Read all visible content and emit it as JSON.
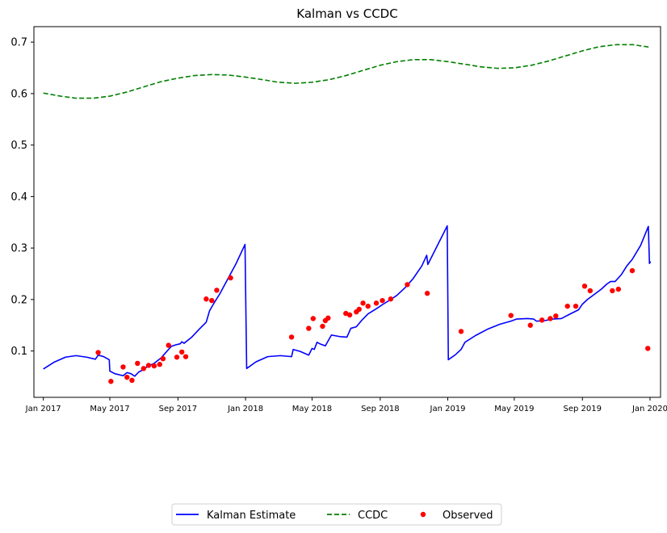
{
  "chart_data": {
    "type": "line",
    "title": "Kalman vs CCDC",
    "xlabel": "",
    "ylabel": "",
    "xlim": [
      "2016-12-15",
      "2020-01-20"
    ],
    "ylim": [
      0.01,
      0.73
    ],
    "x_ticks": [
      "2017-01-01",
      "2017-05-01",
      "2017-09-01",
      "2018-01-01",
      "2018-05-01",
      "2018-09-01",
      "2019-01-01",
      "2019-05-01",
      "2019-09-01",
      "2020-01-01"
    ],
    "x_tick_labels": [
      "Jan 2017",
      "May 2017",
      "Sep 2017",
      "Jan 2018",
      "May 2018",
      "Sep 2018",
      "Jan 2019",
      "May 2019",
      "Sep 2019",
      "Jan 2020"
    ],
    "y_ticks": [
      0.1,
      0.2,
      0.3,
      0.4,
      0.5,
      0.6,
      0.7
    ],
    "y_tick_labels": [
      "0.1",
      "0.2",
      "0.3",
      "0.4",
      "0.5",
      "0.6",
      "0.7"
    ],
    "grid": false,
    "legend_position": "bottom-center",
    "series": [
      {
        "name": "Kalman Estimate",
        "style": "solid",
        "color": "#0000ff",
        "points": [
          [
            "2017-01-01",
            0.065
          ],
          [
            "2017-01-20",
            0.078
          ],
          [
            "2017-02-10",
            0.088
          ],
          [
            "2017-03-01",
            0.091
          ],
          [
            "2017-03-20",
            0.088
          ],
          [
            "2017-04-05",
            0.084
          ],
          [
            "2017-04-10",
            0.092
          ],
          [
            "2017-04-20",
            0.089
          ],
          [
            "2017-04-30",
            0.083
          ],
          [
            "2017-05-01",
            0.061
          ],
          [
            "2017-05-10",
            0.056
          ],
          [
            "2017-05-25",
            0.052
          ],
          [
            "2017-06-01",
            0.058
          ],
          [
            "2017-06-08",
            0.056
          ],
          [
            "2017-06-15",
            0.051
          ],
          [
            "2017-06-22",
            0.059
          ],
          [
            "2017-07-01",
            0.064
          ],
          [
            "2017-07-08",
            0.07
          ],
          [
            "2017-07-20",
            0.076
          ],
          [
            "2017-08-01",
            0.086
          ],
          [
            "2017-08-10",
            0.097
          ],
          [
            "2017-08-20",
            0.109
          ],
          [
            "2017-08-28",
            0.112
          ],
          [
            "2017-09-05",
            0.114
          ],
          [
            "2017-09-08",
            0.118
          ],
          [
            "2017-09-12",
            0.115
          ],
          [
            "2017-09-25",
            0.126
          ],
          [
            "2017-10-10",
            0.143
          ],
          [
            "2017-10-22",
            0.156
          ],
          [
            "2017-10-28",
            0.178
          ],
          [
            "2017-11-05",
            0.193
          ],
          [
            "2017-11-15",
            0.21
          ],
          [
            "2017-11-25",
            0.23
          ],
          [
            "2017-12-05",
            0.25
          ],
          [
            "2017-12-15",
            0.27
          ],
          [
            "2017-12-31",
            0.307
          ],
          [
            "2018-01-03",
            0.066
          ],
          [
            "2018-01-20",
            0.079
          ],
          [
            "2018-02-10",
            0.089
          ],
          [
            "2018-03-05",
            0.091
          ],
          [
            "2018-03-25",
            0.089
          ],
          [
            "2018-03-28",
            0.103
          ],
          [
            "2018-04-10",
            0.099
          ],
          [
            "2018-04-25",
            0.092
          ],
          [
            "2018-05-01",
            0.105
          ],
          [
            "2018-05-05",
            0.103
          ],
          [
            "2018-05-10",
            0.117
          ],
          [
            "2018-05-15",
            0.114
          ],
          [
            "2018-05-25",
            0.11
          ],
          [
            "2018-06-05",
            0.131
          ],
          [
            "2018-06-20",
            0.128
          ],
          [
            "2018-07-03",
            0.127
          ],
          [
            "2018-07-10",
            0.144
          ],
          [
            "2018-07-20",
            0.147
          ],
          [
            "2018-07-30",
            0.16
          ],
          [
            "2018-08-10",
            0.172
          ],
          [
            "2018-08-25",
            0.182
          ],
          [
            "2018-09-05",
            0.19
          ],
          [
            "2018-09-20",
            0.2
          ],
          [
            "2018-10-01",
            0.208
          ],
          [
            "2018-10-15",
            0.222
          ],
          [
            "2018-10-30",
            0.24
          ],
          [
            "2018-11-15",
            0.265
          ],
          [
            "2018-11-24",
            0.286
          ],
          [
            "2018-11-26",
            0.268
          ],
          [
            "2018-12-31",
            0.343
          ],
          [
            "2019-01-02",
            0.083
          ],
          [
            "2019-01-15",
            0.093
          ],
          [
            "2019-01-25",
            0.103
          ],
          [
            "2019-02-01",
            0.117
          ],
          [
            "2019-02-20",
            0.13
          ],
          [
            "2019-03-15",
            0.143
          ],
          [
            "2019-04-05",
            0.152
          ],
          [
            "2019-04-25",
            0.158
          ],
          [
            "2019-05-05",
            0.162
          ],
          [
            "2019-05-25",
            0.163
          ],
          [
            "2019-06-05",
            0.162
          ],
          [
            "2019-06-10",
            0.158
          ],
          [
            "2019-06-25",
            0.159
          ],
          [
            "2019-07-10",
            0.162
          ],
          [
            "2019-07-25",
            0.163
          ],
          [
            "2019-08-10",
            0.172
          ],
          [
            "2019-08-25",
            0.18
          ],
          [
            "2019-09-01",
            0.191
          ],
          [
            "2019-09-10",
            0.2
          ],
          [
            "2019-09-25",
            0.212
          ],
          [
            "2019-10-05",
            0.22
          ],
          [
            "2019-10-15",
            0.23
          ],
          [
            "2019-10-22",
            0.235
          ],
          [
            "2019-10-30",
            0.235
          ],
          [
            "2019-11-10",
            0.248
          ],
          [
            "2019-11-20",
            0.265
          ],
          [
            "2019-11-30",
            0.278
          ],
          [
            "2019-12-15",
            0.305
          ],
          [
            "2019-12-29",
            0.342
          ],
          [
            "2019-12-31",
            0.27
          ],
          [
            "2020-01-02",
            0.274
          ]
        ]
      },
      {
        "name": "CCDC",
        "style": "dashed",
        "color": "#008000",
        "points": [
          [
            "2017-01-01",
            0.601
          ],
          [
            "2017-02-01",
            0.595
          ],
          [
            "2017-03-01",
            0.591
          ],
          [
            "2017-04-01",
            0.591
          ],
          [
            "2017-05-01",
            0.595
          ],
          [
            "2017-06-01",
            0.603
          ],
          [
            "2017-07-01",
            0.613
          ],
          [
            "2017-08-01",
            0.623
          ],
          [
            "2017-09-01",
            0.63
          ],
          [
            "2017-10-01",
            0.635
          ],
          [
            "2017-11-01",
            0.637
          ],
          [
            "2017-12-01",
            0.636
          ],
          [
            "2018-01-01",
            0.632
          ],
          [
            "2018-02-01",
            0.627
          ],
          [
            "2018-03-01",
            0.622
          ],
          [
            "2018-04-01",
            0.62
          ],
          [
            "2018-05-01",
            0.622
          ],
          [
            "2018-06-01",
            0.627
          ],
          [
            "2018-07-01",
            0.635
          ],
          [
            "2018-08-01",
            0.645
          ],
          [
            "2018-09-01",
            0.655
          ],
          [
            "2018-10-01",
            0.662
          ],
          [
            "2018-11-01",
            0.666
          ],
          [
            "2018-12-01",
            0.666
          ],
          [
            "2019-01-01",
            0.662
          ],
          [
            "2019-02-01",
            0.657
          ],
          [
            "2019-03-01",
            0.652
          ],
          [
            "2019-04-01",
            0.649
          ],
          [
            "2019-05-01",
            0.65
          ],
          [
            "2019-06-01",
            0.655
          ],
          [
            "2019-07-01",
            0.663
          ],
          [
            "2019-08-01",
            0.673
          ],
          [
            "2019-09-01",
            0.683
          ],
          [
            "2019-10-01",
            0.691
          ],
          [
            "2019-11-01",
            0.695
          ],
          [
            "2019-12-01",
            0.695
          ],
          [
            "2020-01-01",
            0.69
          ]
        ]
      },
      {
        "name": "Observed",
        "style": "markers",
        "color": "#ff0000",
        "points": [
          [
            "2017-04-10",
            0.097
          ],
          [
            "2017-05-03",
            0.041
          ],
          [
            "2017-05-25",
            0.069
          ],
          [
            "2017-06-01",
            0.049
          ],
          [
            "2017-06-10",
            0.043
          ],
          [
            "2017-06-20",
            0.076
          ],
          [
            "2017-07-01",
            0.066
          ],
          [
            "2017-07-10",
            0.072
          ],
          [
            "2017-07-20",
            0.071
          ],
          [
            "2017-07-30",
            0.074
          ],
          [
            "2017-08-05",
            0.085
          ],
          [
            "2017-08-15",
            0.111
          ],
          [
            "2017-08-30",
            0.088
          ],
          [
            "2017-09-08",
            0.098
          ],
          [
            "2017-09-15",
            0.089
          ],
          [
            "2017-10-22",
            0.201
          ],
          [
            "2017-11-01",
            0.198
          ],
          [
            "2017-11-10",
            0.218
          ],
          [
            "2017-12-05",
            0.242
          ],
          [
            "2018-03-25",
            0.127
          ],
          [
            "2018-04-25",
            0.144
          ],
          [
            "2018-05-03",
            0.163
          ],
          [
            "2018-05-20",
            0.148
          ],
          [
            "2018-05-25",
            0.159
          ],
          [
            "2018-05-30",
            0.164
          ],
          [
            "2018-07-01",
            0.173
          ],
          [
            "2018-07-08",
            0.17
          ],
          [
            "2018-07-20",
            0.176
          ],
          [
            "2018-07-25",
            0.181
          ],
          [
            "2018-08-01",
            0.193
          ],
          [
            "2018-08-10",
            0.187
          ],
          [
            "2018-08-25",
            0.193
          ],
          [
            "2018-09-05",
            0.198
          ],
          [
            "2018-09-20",
            0.201
          ],
          [
            "2018-10-20",
            0.229
          ],
          [
            "2018-11-25",
            0.212
          ],
          [
            "2019-01-25",
            0.138
          ],
          [
            "2019-04-25",
            0.169
          ],
          [
            "2019-05-30",
            0.15
          ],
          [
            "2019-06-20",
            0.16
          ],
          [
            "2019-07-05",
            0.163
          ],
          [
            "2019-07-15",
            0.168
          ],
          [
            "2019-08-05",
            0.187
          ],
          [
            "2019-08-20",
            0.187
          ],
          [
            "2019-09-05",
            0.226
          ],
          [
            "2019-09-15",
            0.217
          ],
          [
            "2019-10-25",
            0.217
          ],
          [
            "2019-11-05",
            0.22
          ],
          [
            "2019-11-30",
            0.256
          ],
          [
            "2019-12-28",
            0.105
          ]
        ]
      }
    ]
  }
}
